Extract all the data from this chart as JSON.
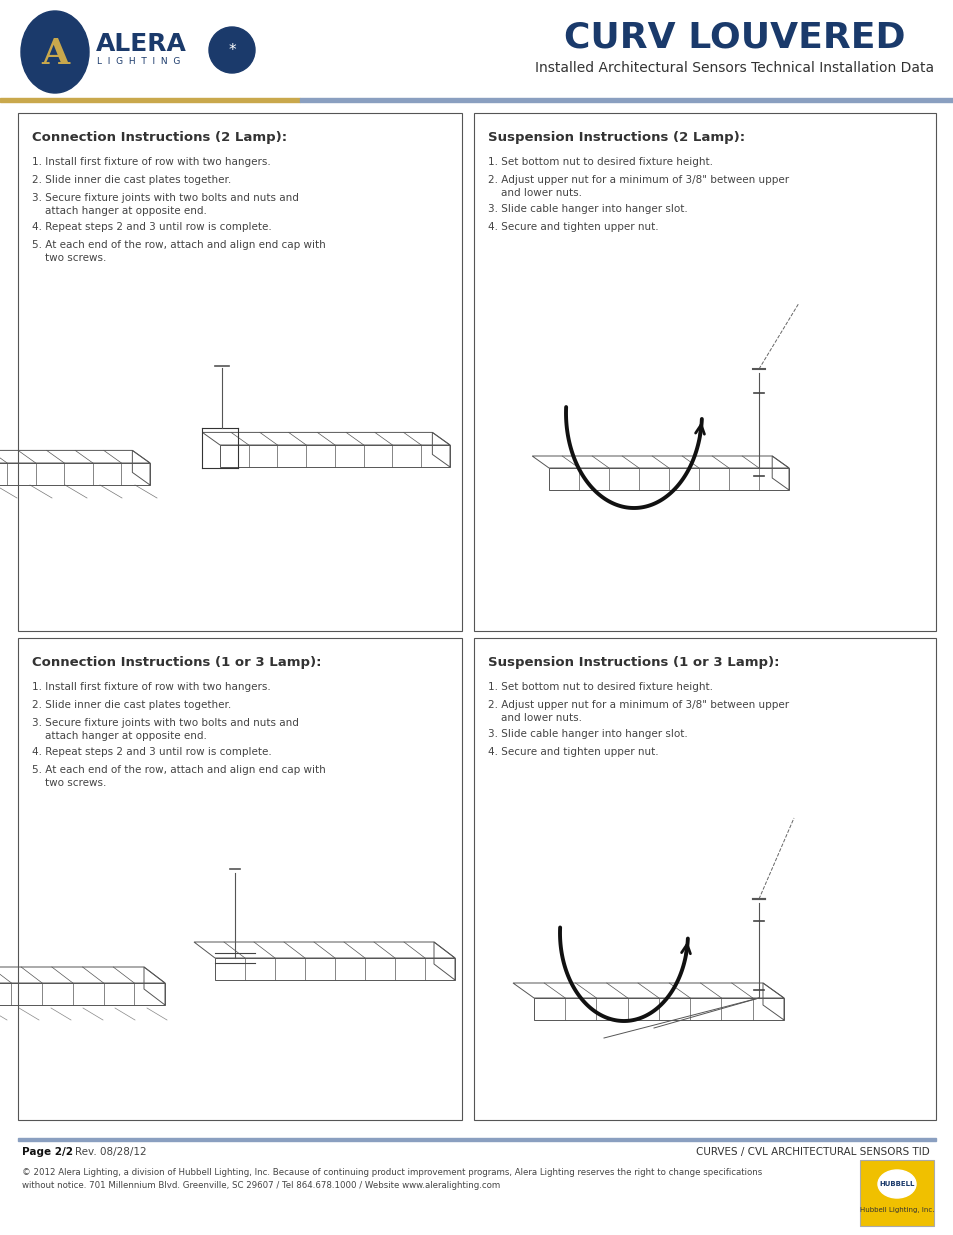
{
  "page_bg": "#ffffff",
  "header_title": "CURV LOUVERED",
  "header_subtitle": "Installed Architectural Sensors Technical Installation Data",
  "header_title_color": "#1a3a6b",
  "header_subtitle_color": "#333333",
  "divider_color": "#8a9fc0",
  "box_border_color": "#555555",
  "box_bg": "#ffffff",
  "panel_titles": [
    "Connection Instructions (2 Lamp):",
    "Suspension Instructions (2 Lamp):",
    "Connection Instructions (1 or 3 Lamp):",
    "Suspension Instructions (1 or 3 Lamp):"
  ],
  "connection_steps": [
    "1. Install first fixture of row with two hangers.",
    "2. Slide inner die cast plates together.",
    "3. Secure fixture joints with two bolts and nuts and\n    attach hanger at opposite end.",
    "4. Repeat steps 2 and 3 until row is complete.",
    "5. At each end of the row, attach and align end cap with\n    two screws."
  ],
  "suspension_steps": [
    "1. Set bottom nut to desired fixture height.",
    "2. Adjust upper nut for a minimum of 3/8\" between upper\n    and lower nuts.",
    "3. Slide cable hanger into hanger slot.",
    "4. Secure and tighten upper nut."
  ],
  "footer_page": "Page 2/2",
  "footer_rev": "Rev. 08/28/12",
  "footer_product": "CURVES / CVL ARCHITECTURAL SENSORS TID",
  "footer_copyright": "© 2012 Alera Lighting, a division of Hubbell Lighting, Inc. Because of continuing product improvement programs, Alera Lighting reserves the right to change specifications\nwithout notice. 701 Millennium Blvd. Greenville, SC 29607 / Tel 864.678.1000 / Website www.aleralighting.com",
  "text_color": "#333333",
  "light_text_color": "#444444",
  "bold_footer_color": "#111111"
}
